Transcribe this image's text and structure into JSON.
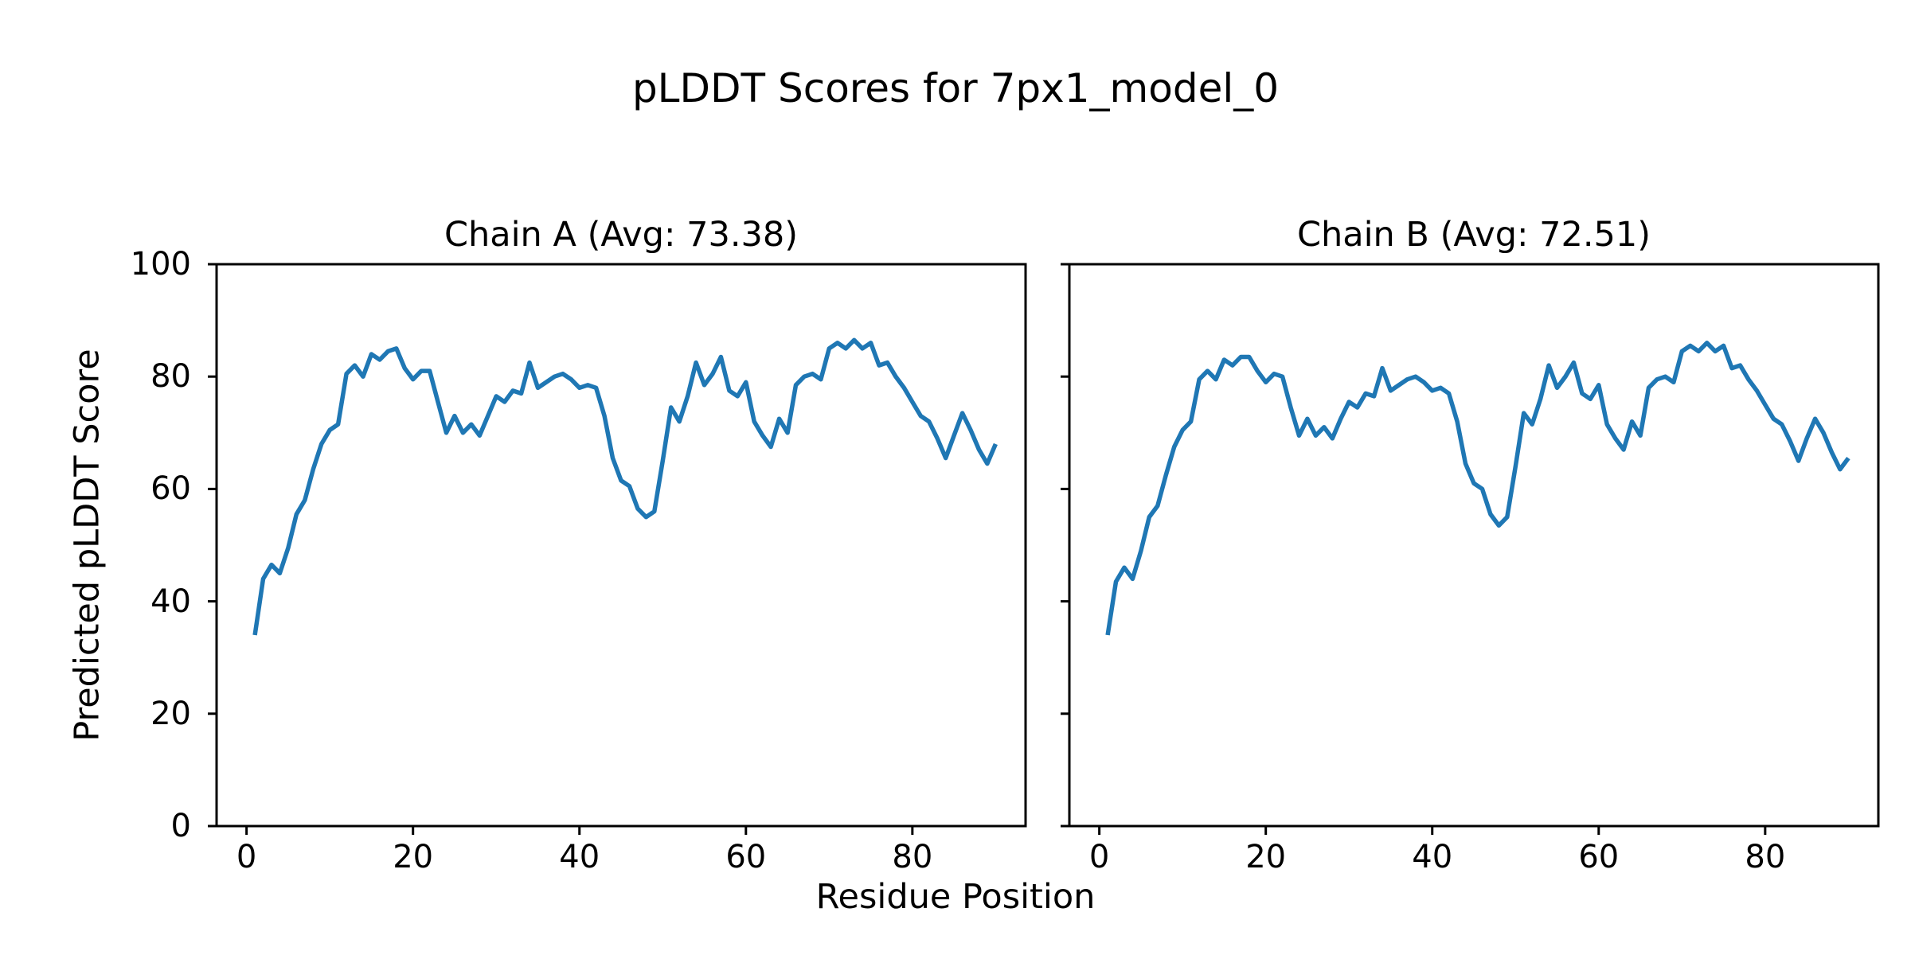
{
  "figure": {
    "title": "pLDDT Scores for 7px1_model_0"
  },
  "axes": {
    "xlabel": "Residue Position",
    "ylabel": "Predicted pLDDT Score",
    "xticks": [
      0,
      20,
      40,
      60,
      80
    ],
    "yticks": [
      0,
      20,
      40,
      60,
      80,
      100
    ],
    "spine_color": "#000000",
    "background": "#ffffff"
  },
  "chart_data": [
    {
      "type": "line",
      "title": "Chain A (Avg: 73.38)",
      "chain": "A",
      "avg_plddt": 73.38,
      "xlabel": "Residue Position",
      "ylabel": "Predicted pLDDT Score",
      "xlim": [
        -3.6,
        93.6
      ],
      "ylim": [
        0,
        100
      ],
      "grid": false,
      "legend": "none",
      "line_color": "#1f77b4",
      "residue_start": 1,
      "residue_end": 90,
      "values": [
        34,
        44,
        46.5,
        45,
        49.5,
        55.5,
        58,
        63.5,
        68,
        70.5,
        71.5,
        80.5,
        82,
        80,
        84,
        83,
        84.5,
        85,
        81.5,
        79.5,
        81,
        81,
        75.5,
        70,
        73,
        70,
        71.5,
        69.5,
        73,
        76.5,
        75.5,
        77.5,
        77,
        82.5,
        78,
        79,
        80,
        80.5,
        79.5,
        78,
        78.5,
        78,
        73,
        65.5,
        61.5,
        60.5,
        56.5,
        55,
        56,
        65,
        74.5,
        72,
        76.5,
        82.5,
        78.5,
        80.5,
        83.5,
        77.5,
        76.5,
        79,
        72,
        69.5,
        67.5,
        72.5,
        70,
        78.5,
        80,
        80.5,
        79.5,
        85,
        86,
        85,
        86.5,
        85,
        86,
        82,
        82.5,
        80,
        78,
        75.5,
        73,
        72,
        69,
        65.5,
        69.5,
        73.5,
        70.5,
        67,
        64.5,
        68
      ]
    },
    {
      "type": "line",
      "title": "Chain B (Avg: 72.51)",
      "chain": "B",
      "avg_plddt": 72.51,
      "xlabel": "Residue Position",
      "ylabel": "Predicted pLDDT Score",
      "xlim": [
        -3.6,
        93.6
      ],
      "ylim": [
        0,
        100
      ],
      "grid": false,
      "legend": "none",
      "line_color": "#1f77b4",
      "residue_start": 1,
      "residue_end": 90,
      "values": [
        34,
        43.5,
        46,
        44,
        49,
        55,
        57,
        62.5,
        67.5,
        70.5,
        72,
        79.5,
        81,
        79.5,
        83,
        82,
        83.5,
        83.5,
        81,
        79,
        80.5,
        80,
        74.5,
        69.5,
        72.5,
        69.5,
        71,
        69,
        72.5,
        75.5,
        74.5,
        77,
        76.5,
        81.5,
        77.5,
        78.5,
        79.5,
        80,
        79,
        77.5,
        78,
        77,
        72,
        64.5,
        61,
        60,
        55.5,
        53.5,
        55,
        64,
        73.5,
        71.5,
        76,
        82,
        78,
        80,
        82.5,
        77,
        76,
        78.5,
        71.5,
        69,
        67,
        72,
        69.5,
        78,
        79.5,
        80,
        79,
        84.5,
        85.5,
        84.5,
        86,
        84.5,
        85.5,
        81.5,
        82,
        79.5,
        77.5,
        75,
        72.5,
        71.5,
        68.5,
        65,
        69,
        72.5,
        70,
        66.5,
        63.5,
        65.5
      ]
    }
  ]
}
